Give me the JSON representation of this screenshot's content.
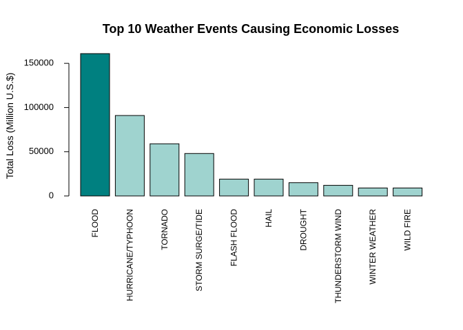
{
  "chart_data": {
    "type": "bar",
    "title": "Top 10 Weather Events Causing Economic Losses",
    "xlabel": "",
    "ylabel": "Total Loss  (Million U.S.$)",
    "categories": [
      "FLOOD",
      "HURRICANE/TYPHOON",
      "TORNADO",
      "STORM SURGE/TIDE",
      "FLASH FLOOD",
      "HAIL",
      "DROUGHT",
      "THUNDERSTORM WIND",
      "WINTER WEATHER",
      "WILD FIRE"
    ],
    "values": [
      161000,
      91000,
      59000,
      48000,
      19000,
      19000,
      15000,
      12000,
      9000,
      9000
    ],
    "yticks": [
      0,
      50000,
      100000,
      150000
    ],
    "ytick_labels": [
      "0",
      "50000",
      "100000",
      "150000"
    ],
    "ylim": [
      0,
      161000
    ],
    "colors": [
      "#008080",
      "#9FD3CF",
      "#9FD3CF",
      "#9FD3CF",
      "#9FD3CF",
      "#9FD3CF",
      "#9FD3CF",
      "#9FD3CF",
      "#9FD3CF",
      "#9FD3CF"
    ],
    "grid": false,
    "legend": "none"
  }
}
